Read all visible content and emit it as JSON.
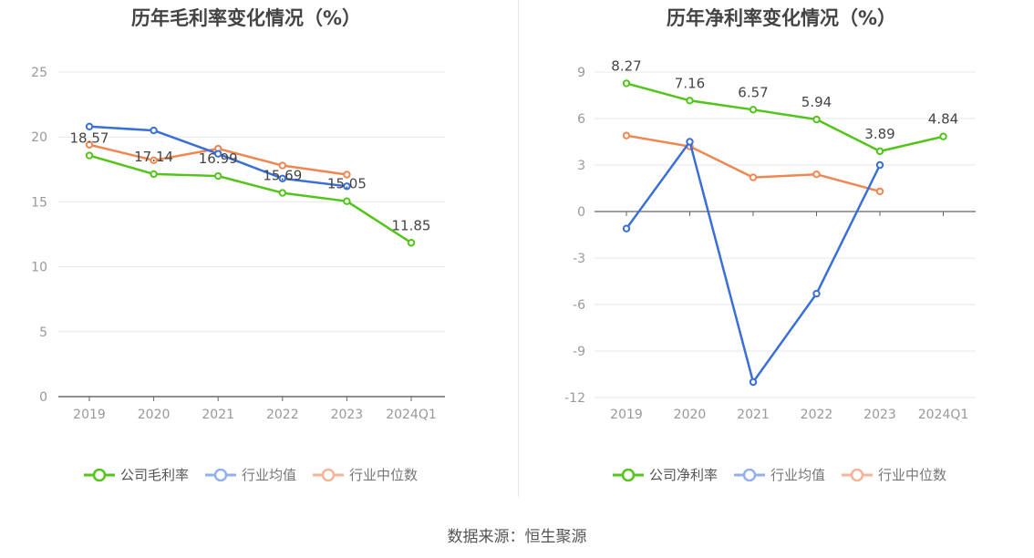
{
  "footer": {
    "source_label": "数据来源：恒生聚源"
  },
  "legend_colors": {
    "company": "#52c41a",
    "avg": "#3a6fd8",
    "median": "#f08650"
  },
  "chart_data": [
    {
      "type": "line",
      "title": "历年毛利率变化情况（%）",
      "categories": [
        "2019",
        "2020",
        "2021",
        "2022",
        "2023",
        "2024Q1"
      ],
      "ylim": [
        0,
        25
      ],
      "yticks": [
        0,
        5,
        10,
        15,
        20,
        25
      ],
      "ytick_labels": [
        "0",
        "5",
        "10",
        "15",
        "20",
        "25"
      ],
      "series": [
        {
          "name": "公司毛利率",
          "key": "company",
          "color": "#52c41a",
          "values": [
            18.57,
            17.14,
            16.99,
            15.69,
            15.05,
            11.85
          ],
          "labels": [
            "18.57",
            "17.14",
            "16.99",
            "15.69",
            "15.05",
            "11.85"
          ]
        },
        {
          "name": "行业均值",
          "key": "avg",
          "color": "#3a6fd8",
          "values": [
            20.8,
            20.5,
            18.7,
            16.8,
            16.2,
            null
          ],
          "labels": null
        },
        {
          "name": "行业中位数",
          "key": "median",
          "color": "#f08650",
          "values": [
            19.4,
            18.2,
            19.1,
            17.8,
            17.1,
            null
          ],
          "labels": null
        }
      ]
    },
    {
      "type": "line",
      "title": "历年净利率变化情况（%）",
      "categories": [
        "2019",
        "2020",
        "2021",
        "2022",
        "2023",
        "2024Q1"
      ],
      "ylim": [
        -12,
        9
      ],
      "yticks": [
        -12,
        -9,
        -6,
        -3,
        0,
        3,
        6,
        9
      ],
      "ytick_labels": [
        "-12",
        "-9",
        "-6",
        "-3",
        "0",
        "3",
        "6",
        "9"
      ],
      "series": [
        {
          "name": "公司净利率",
          "key": "company",
          "color": "#52c41a",
          "values": [
            8.27,
            7.16,
            6.57,
            5.94,
            3.89,
            4.84
          ],
          "labels": [
            "8.27",
            "7.16",
            "6.57",
            "5.94",
            "3.89",
            "4.84"
          ]
        },
        {
          "name": "行业均值",
          "key": "avg",
          "color": "#3a6fd8",
          "values": [
            -1.1,
            4.5,
            -11.0,
            -5.3,
            3.0,
            null
          ],
          "labels": null
        },
        {
          "name": "行业中位数",
          "key": "median",
          "color": "#f08650",
          "values": [
            4.9,
            4.2,
            2.2,
            2.4,
            1.3,
            null
          ],
          "labels": null
        }
      ]
    }
  ]
}
